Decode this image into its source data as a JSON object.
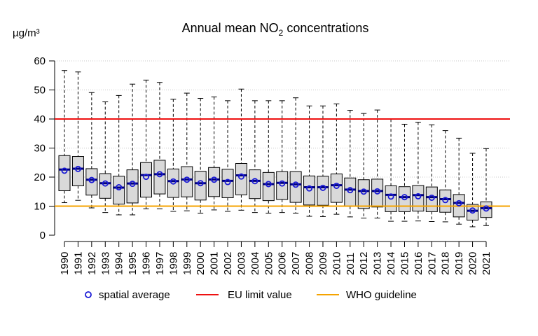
{
  "chart_data": {
    "type": "box",
    "title_prefix": "Annual mean NO",
    "title_subscript": "2",
    "title_suffix": " concentrations",
    "ylabel": "µg/m³",
    "ylim": [
      0,
      60
    ],
    "yticks": [
      0,
      10,
      20,
      30,
      40,
      50,
      60
    ],
    "grid": "horizontal-dotted",
    "categories": [
      "1990",
      "1991",
      "1992",
      "1993",
      "1994",
      "1995",
      "1996",
      "1997",
      "1998",
      "1999",
      "2000",
      "2001",
      "2002",
      "2003",
      "2004",
      "2005",
      "2006",
      "2007",
      "2008",
      "2009",
      "2010",
      "2011",
      "2012",
      "2013",
      "2014",
      "2015",
      "2016",
      "2017",
      "2018",
      "2019",
      "2020",
      "2021"
    ],
    "boxes": [
      {
        "min": 11.2,
        "q1": 15.3,
        "median": 22.6,
        "q3": 27.4,
        "max": 56.7
      },
      {
        "min": 12.0,
        "q1": 17.0,
        "median": 22.9,
        "q3": 27.1,
        "max": 56.2
      },
      {
        "min": 9.4,
        "q1": 13.8,
        "median": 19.1,
        "q3": 22.9,
        "max": 49.1
      },
      {
        "min": 7.8,
        "q1": 12.7,
        "median": 17.9,
        "q3": 21.2,
        "max": 45.9
      },
      {
        "min": 7.0,
        "q1": 10.7,
        "median": 16.4,
        "q3": 20.3,
        "max": 48.1
      },
      {
        "min": 7.0,
        "q1": 11.1,
        "median": 17.8,
        "q3": 22.5,
        "max": 52.0
      },
      {
        "min": 9.1,
        "q1": 13.1,
        "median": 20.7,
        "q3": 25.0,
        "max": 53.4
      },
      {
        "min": 9.1,
        "q1": 14.2,
        "median": 21.0,
        "q3": 25.8,
        "max": 52.6
      },
      {
        "min": 8.2,
        "q1": 13.0,
        "median": 18.6,
        "q3": 22.8,
        "max": 46.8
      },
      {
        "min": 8.4,
        "q1": 13.2,
        "median": 19.2,
        "q3": 23.6,
        "max": 48.9
      },
      {
        "min": 7.6,
        "q1": 12.1,
        "median": 17.9,
        "q3": 22.0,
        "max": 47.1
      },
      {
        "min": 8.7,
        "q1": 13.3,
        "median": 19.2,
        "q3": 23.3,
        "max": 47.6
      },
      {
        "min": 8.2,
        "q1": 12.9,
        "median": 18.7,
        "q3": 22.7,
        "max": 46.3
      },
      {
        "min": 8.6,
        "q1": 13.9,
        "median": 20.6,
        "q3": 24.7,
        "max": 50.3
      },
      {
        "min": 7.8,
        "q1": 12.6,
        "median": 18.7,
        "q3": 22.5,
        "max": 46.3
      },
      {
        "min": 7.6,
        "q1": 11.9,
        "median": 17.6,
        "q3": 21.6,
        "max": 46.3
      },
      {
        "min": 7.8,
        "q1": 12.3,
        "median": 18.0,
        "q3": 21.9,
        "max": 46.3
      },
      {
        "min": 7.6,
        "q1": 11.3,
        "median": 17.5,
        "q3": 21.9,
        "max": 47.3
      },
      {
        "min": 6.5,
        "q1": 10.4,
        "median": 16.5,
        "q3": 20.4,
        "max": 44.5
      },
      {
        "min": 6.4,
        "q1": 10.3,
        "median": 16.5,
        "q3": 20.3,
        "max": 44.5
      },
      {
        "min": 7.2,
        "q1": 11.3,
        "median": 17.2,
        "q3": 21.1,
        "max": 45.2
      },
      {
        "min": 6.3,
        "q1": 9.9,
        "median": 15.7,
        "q3": 19.7,
        "max": 43.0
      },
      {
        "min": 5.9,
        "q1": 9.2,
        "median": 15.2,
        "q3": 19.1,
        "max": 41.9
      },
      {
        "min": 5.9,
        "q1": 9.7,
        "median": 15.2,
        "q3": 19.3,
        "max": 43.1
      },
      {
        "min": 4.8,
        "q1": 8.1,
        "median": 13.9,
        "q3": 17.0,
        "max": 39.9
      },
      {
        "min": 4.8,
        "q1": 8.1,
        "median": 13.1,
        "q3": 16.7,
        "max": 38.2
      },
      {
        "min": 4.9,
        "q1": 8.3,
        "median": 13.8,
        "q3": 17.1,
        "max": 38.9
      },
      {
        "min": 4.7,
        "q1": 8.1,
        "median": 13.1,
        "q3": 16.6,
        "max": 38.0
      },
      {
        "min": 4.6,
        "q1": 7.9,
        "median": 12.4,
        "q3": 15.6,
        "max": 36.0
      },
      {
        "min": 3.8,
        "q1": 6.3,
        "median": 11.1,
        "q3": 14.0,
        "max": 33.4
      },
      {
        "min": 2.9,
        "q1": 5.2,
        "median": 8.4,
        "q3": 10.6,
        "max": 28.2
      },
      {
        "min": 3.3,
        "q1": 6.1,
        "median": 9.3,
        "q3": 11.5,
        "max": 29.8
      }
    ],
    "spatial_average": [
      22.2,
      22.8,
      19.0,
      17.8,
      16.5,
      17.7,
      20.1,
      21.0,
      18.5,
      19.1,
      17.9,
      19.1,
      18.3,
      20.2,
      18.6,
      17.6,
      17.8,
      17.4,
      16.1,
      16.3,
      17.0,
      15.5,
      15.0,
      15.1,
      13.3,
      13.1,
      13.4,
      12.9,
      12.1,
      11.0,
      8.5,
      9.2
    ],
    "reference_lines": [
      {
        "name": "EU limit value",
        "value": 40,
        "color": "#ee1111"
      },
      {
        "name": "WHO guideline",
        "value": 10,
        "color": "#f5a300"
      }
    ],
    "legend": {
      "placement": "bottom",
      "items": [
        {
          "label": "spatial average",
          "kind": "circle",
          "color": "#1a1ad6"
        },
        {
          "label": "EU limit value",
          "kind": "line",
          "color": "#ee1111"
        },
        {
          "label": "WHO guideline",
          "kind": "line",
          "color": "#f5a300"
        }
      ]
    },
    "colors": {
      "box_fill": "#d9d9d9",
      "median": "#000080",
      "grid": "#c8c8c8"
    }
  }
}
